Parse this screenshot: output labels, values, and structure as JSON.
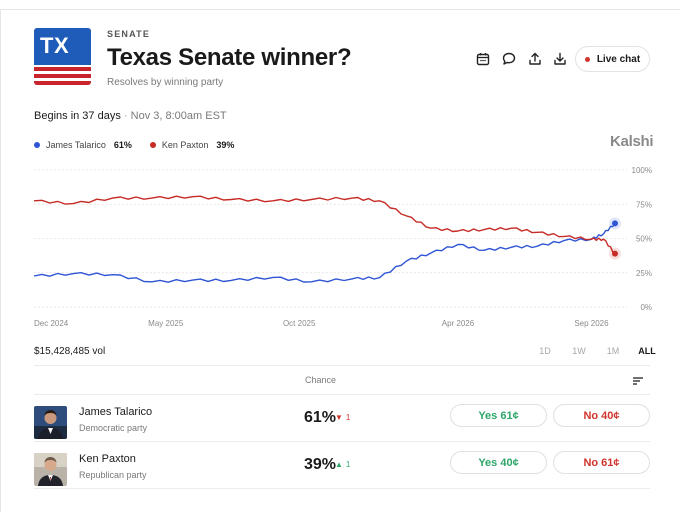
{
  "header": {
    "flag_text": "TX",
    "category": "SENATE",
    "title": "Texas Senate winner?",
    "subtitle": "Resolves by winning party",
    "live_chat_label": "Live chat",
    "toolbar_icons": [
      "calendar-icon",
      "comment-icon",
      "share-icon",
      "download-icon"
    ]
  },
  "schedule": {
    "begins": "Begins in 37 days",
    "separator": "·",
    "date": "Nov 3, 8:00am EST"
  },
  "legend": [
    {
      "name": "James Talarico",
      "pct": "61%",
      "color": "#2f55d4"
    },
    {
      "name": "Ken Paxton",
      "pct": "39%",
      "color": "#c62b25"
    }
  ],
  "brand": "Kalshi",
  "chart_data": {
    "type": "line",
    "x_ticks": [
      "Dec 2024",
      "May 2025",
      "Oct 2025",
      "Apr 2026",
      "Sep 2026"
    ],
    "y_ticks": [
      "100%",
      "75%",
      "50%",
      "25%",
      "0%"
    ],
    "ylim": [
      0,
      100
    ],
    "grid": true,
    "x": [
      "2024-12-01",
      "2025-01-15",
      "2025-03-01",
      "2025-04-15",
      "2025-06-01",
      "2025-07-15",
      "2025-09-01",
      "2025-10-15",
      "2025-12-01",
      "2026-01-01",
      "2026-02-01",
      "2026-03-01",
      "2026-04-01",
      "2026-05-01",
      "2026-06-01",
      "2026-07-01",
      "2026-08-01",
      "2026-09-01",
      "2026-09-15",
      "2026-09-28"
    ],
    "series": [
      {
        "name": "James Talarico",
        "color": "#2f55d4",
        "values": [
          22,
          25,
          23,
          19,
          19,
          20,
          21,
          19,
          20,
          22,
          33,
          40,
          45,
          42,
          43,
          45,
          48,
          50,
          53,
          61
        ]
      },
      {
        "name": "Ken Paxton",
        "color": "#c62b25",
        "values": [
          77,
          76,
          79,
          80,
          80,
          79,
          77,
          79,
          79,
          78,
          66,
          58,
          55,
          57,
          57,
          55,
          51,
          50,
          49,
          39
        ]
      }
    ]
  },
  "volume": "$15,428,485 vol",
  "ranges": [
    "1D",
    "1W",
    "1M",
    "ALL"
  ],
  "active_range": "ALL",
  "table": {
    "chance_header": "Chance",
    "rows": [
      {
        "name": "James Talarico",
        "party": "Democratic party",
        "chance": "61%",
        "delta": "1",
        "delta_dir": "down",
        "yes": "Yes 61¢",
        "no": "No 40¢"
      },
      {
        "name": "Ken Paxton",
        "party": "Republican party",
        "chance": "39%",
        "delta": "1",
        "delta_dir": "up",
        "yes": "Yes 40¢",
        "no": "No 61¢"
      }
    ]
  }
}
